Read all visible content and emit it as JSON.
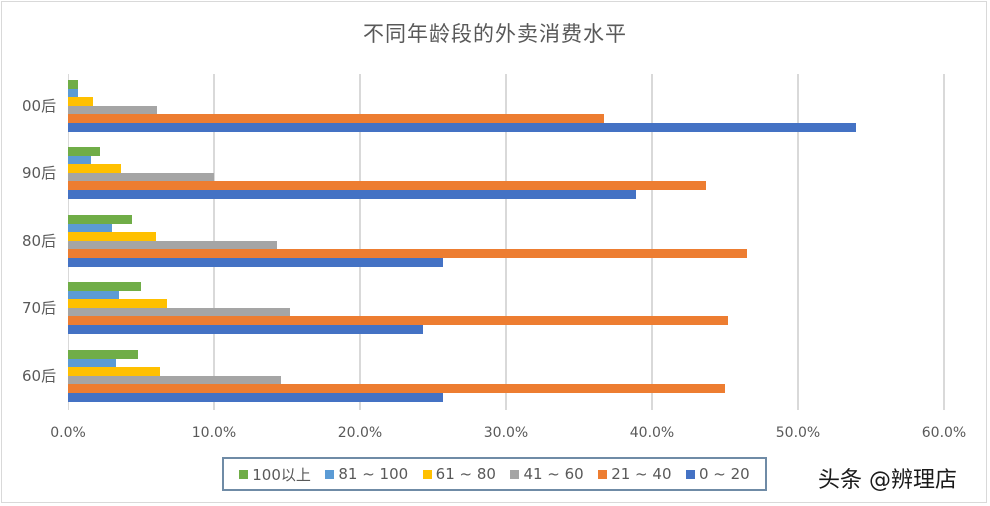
{
  "chart_data": {
    "type": "bar",
    "orientation": "horizontal",
    "title": "不同年龄段的外卖消费水平",
    "xlabel": "",
    "ylabel": "",
    "xlim": [
      0,
      60
    ],
    "x_ticks": [
      "0.0%",
      "10.0%",
      "20.0%",
      "30.0%",
      "40.0%",
      "50.0%",
      "60.0%"
    ],
    "grid": true,
    "legend_position": "bottom",
    "categories": [
      "00后",
      "90后",
      "80后",
      "70后",
      "60后"
    ],
    "series": [
      {
        "name": "100以上",
        "color": "#70ad47",
        "values": [
          0.7,
          2.2,
          4.4,
          5.0,
          4.8
        ]
      },
      {
        "name": "81 ~ 100",
        "color": "#5b9bd5",
        "values": [
          0.7,
          1.6,
          3.0,
          3.5,
          3.3
        ]
      },
      {
        "name": "61 ~ 80",
        "color": "#ffc000",
        "values": [
          1.7,
          3.6,
          6.0,
          6.8,
          6.3
        ]
      },
      {
        "name": "41 ~ 60",
        "color": "#a5a5a5",
        "values": [
          6.1,
          10.0,
          14.3,
          15.2,
          14.6
        ]
      },
      {
        "name": "21 ~ 40",
        "color": "#ed7d31",
        "values": [
          36.7,
          43.7,
          46.5,
          45.2,
          45.0
        ]
      },
      {
        "name": "0 ~ 20",
        "color": "#4472c4",
        "values": [
          54.0,
          38.9,
          25.7,
          24.3,
          25.7
        ]
      }
    ],
    "unit": "%"
  },
  "legend": {
    "items": [
      {
        "label": "100以上",
        "color": "#70ad47"
      },
      {
        "label": "81 ~ 100",
        "color": "#5b9bd5"
      },
      {
        "label": "61 ~ 80",
        "color": "#ffc000"
      },
      {
        "label": "41 ~ 60",
        "color": "#a5a5a5"
      },
      {
        "label": "21 ~ 40",
        "color": "#ed7d31"
      },
      {
        "label": "0 ~ 20",
        "color": "#4472c4"
      }
    ]
  },
  "watermark": "头条 @辨理店"
}
